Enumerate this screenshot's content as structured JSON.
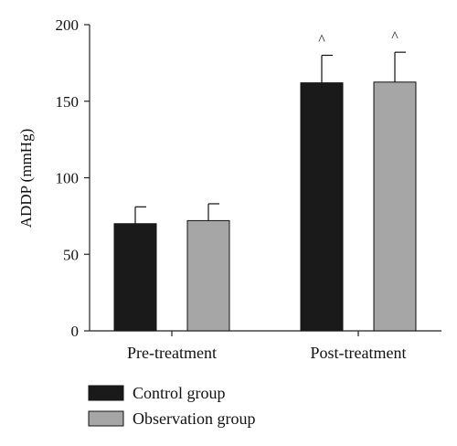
{
  "chart_data": {
    "type": "bar",
    "title": "",
    "xlabel": "",
    "ylabel": "ADDP (mmHg)",
    "ylim": [
      0,
      200
    ],
    "yticks": [
      0,
      50,
      100,
      150,
      200
    ],
    "grid": false,
    "legend_position": "bottom-left",
    "categories": [
      "Pre-treatment",
      "Post-treatment"
    ],
    "series": [
      {
        "name": "Control group",
        "color": "#1a1a1a",
        "values": [
          70,
          162
        ],
        "error": [
          11,
          18
        ],
        "markers": [
          "",
          "^"
        ]
      },
      {
        "name": "Observation group",
        "color": "#a6a6a6",
        "values": [
          72,
          162.5
        ],
        "error": [
          11,
          19.5
        ],
        "markers": [
          "",
          "^"
        ]
      }
    ]
  }
}
